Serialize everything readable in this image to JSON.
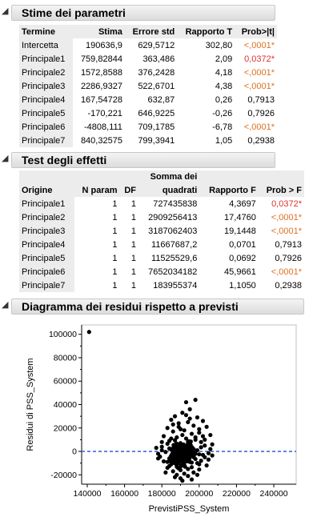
{
  "params": {
    "title": "Stime dei parametri",
    "headers": [
      "Termine",
      "Stima",
      "Errore std",
      "Rapporto T",
      "Prob>|t|"
    ],
    "rows": [
      {
        "term": "Intercetta",
        "stima": "190636,9",
        "err": "629,5712",
        "t": "302,80",
        "p": "<,0001*",
        "sig": "orange"
      },
      {
        "term": "Principale1",
        "stima": "759,82844",
        "err": "363,486",
        "t": "2,09",
        "p": "0,0372*",
        "sig": "red"
      },
      {
        "term": "Principale2",
        "stima": "1572,8588",
        "err": "376,2428",
        "t": "4,18",
        "p": "<,0001*",
        "sig": "orange"
      },
      {
        "term": "Principale3",
        "stima": "2286,9327",
        "err": "522,6701",
        "t": "4,38",
        "p": "<,0001*",
        "sig": "orange"
      },
      {
        "term": "Principale4",
        "stima": "167,54728",
        "err": "632,87",
        "t": "0,26",
        "p": "0,7913",
        "sig": "none"
      },
      {
        "term": "Principale5",
        "stima": "-170,221",
        "err": "646,9225",
        "t": "-0,26",
        "p": "0,7926",
        "sig": "none"
      },
      {
        "term": "Principale6",
        "stima": "-4808,111",
        "err": "709,1785",
        "t": "-6,78",
        "p": "<,0001*",
        "sig": "orange"
      },
      {
        "term": "Principale7",
        "stima": "840,32575",
        "err": "799,3941",
        "t": "1,05",
        "p": "0,2938",
        "sig": "none"
      }
    ]
  },
  "effects": {
    "title": "Test degli effetti",
    "headers": [
      "Origine",
      "N param",
      "DF",
      "Somma dei quadrati",
      "Rapporto F",
      "Prob > F"
    ],
    "header_top": "Somma dei",
    "header_bottom": "quadrati",
    "rows": [
      {
        "src": "Principale1",
        "n": "1",
        "df": "1",
        "ss": "727435838",
        "f": "4,3697",
        "p": "0,0372*",
        "sig": "red"
      },
      {
        "src": "Principale2",
        "n": "1",
        "df": "1",
        "ss": "2909256413",
        "f": "17,4760",
        "p": "<,0001*",
        "sig": "orange"
      },
      {
        "src": "Principale3",
        "n": "1",
        "df": "1",
        "ss": "3187062403",
        "f": "19,1448",
        "p": "<,0001*",
        "sig": "orange"
      },
      {
        "src": "Principale4",
        "n": "1",
        "df": "1",
        "ss": "11667687,2",
        "f": "0,0701",
        "p": "0,7913",
        "sig": "none"
      },
      {
        "src": "Principale5",
        "n": "1",
        "df": "1",
        "ss": "11525529,6",
        "f": "0,0692",
        "p": "0,7926",
        "sig": "none"
      },
      {
        "src": "Principale6",
        "n": "1",
        "df": "1",
        "ss": "7652034182",
        "f": "45,9661",
        "p": "<,0001*",
        "sig": "orange"
      },
      {
        "src": "Principale7",
        "n": "1",
        "df": "1",
        "ss": "183955374",
        "f": "1,1050",
        "p": "0,2938",
        "sig": "none"
      }
    ]
  },
  "residuals": {
    "title": "Diagramma dei residui rispetto a previsti"
  },
  "colors": {
    "orange_sig": "#e07020",
    "red_sig": "#e03030",
    "zero_line": "#3b6fd6"
  },
  "chart_data": {
    "type": "scatter",
    "title": "",
    "xlabel": "PrevistiPSS_System",
    "ylabel": "Residui di PSS_System",
    "xlim": [
      137000,
      252000
    ],
    "ylim": [
      -28000,
      108000
    ],
    "xticks": [
      140000,
      160000,
      180000,
      200000,
      220000,
      240000
    ],
    "xtick_labels": [
      "140000",
      "160000",
      "180000",
      "200000",
      "220000",
      "240000"
    ],
    "yticks": [
      -20000,
      0,
      20000,
      40000,
      60000,
      80000,
      100000
    ],
    "ytick_labels": [
      "-20000",
      "0",
      "20000",
      "40000",
      "60000",
      "80000",
      "100000"
    ],
    "reference_line": {
      "y": 0,
      "style": "dashed",
      "color": "#3b6fd6"
    },
    "grid": false,
    "points_note": "cloud of ~400 points centered near x=190000, y=0; outlier at x=141000, y=102000",
    "points": [
      [
        141000,
        102000
      ],
      [
        198000,
        44000
      ],
      [
        193000,
        42000
      ],
      [
        195000,
        36000
      ],
      [
        191000,
        33000
      ],
      [
        187000,
        30000
      ],
      [
        199000,
        29000
      ],
      [
        185000,
        27000
      ],
      [
        202000,
        26000
      ],
      [
        194000,
        25000
      ],
      [
        189000,
        24000
      ],
      [
        197000,
        22000
      ],
      [
        183000,
        20000
      ],
      [
        204000,
        21000
      ],
      [
        190000,
        19000
      ],
      [
        192000,
        18000
      ],
      [
        186000,
        17000
      ],
      [
        200000,
        16000
      ],
      [
        196000,
        15000
      ],
      [
        181000,
        13000
      ],
      [
        206000,
        14000
      ],
      [
        188000,
        12000
      ],
      [
        193000,
        11000
      ],
      [
        198000,
        10000
      ],
      [
        184000,
        9000
      ],
      [
        201000,
        8000
      ],
      [
        190000,
        7000
      ],
      [
        195000,
        6000
      ],
      [
        187000,
        5000
      ],
      [
        203000,
        5000
      ],
      [
        180000,
        4000
      ],
      [
        192000,
        3000
      ],
      [
        197000,
        2000
      ],
      [
        185000,
        1500
      ],
      [
        199000,
        1000
      ],
      [
        189000,
        500
      ],
      [
        182000,
        -500
      ],
      [
        194000,
        -1000
      ],
      [
        205000,
        -1500
      ],
      [
        188000,
        -2000
      ],
      [
        200000,
        -2500
      ],
      [
        186000,
        -3000
      ],
      [
        191000,
        -3500
      ],
      [
        196000,
        -4000
      ],
      [
        179000,
        -4500
      ],
      [
        203000,
        -5000
      ],
      [
        190000,
        -5500
      ],
      [
        184000,
        -6000
      ],
      [
        198000,
        -6500
      ],
      [
        193000,
        -7000
      ],
      [
        187000,
        -7500
      ],
      [
        201000,
        -8000
      ],
      [
        181000,
        -8500
      ],
      [
        195000,
        -9000
      ],
      [
        189000,
        -9500
      ],
      [
        199000,
        -10000
      ],
      [
        185000,
        -11000
      ],
      [
        192000,
        -11500
      ],
      [
        204000,
        -12000
      ],
      [
        188000,
        -13000
      ],
      [
        196000,
        -13500
      ],
      [
        183000,
        -14000
      ],
      [
        194000,
        -15000
      ],
      [
        200000,
        -15500
      ],
      [
        190000,
        -16000
      ],
      [
        186000,
        -17000
      ],
      [
        197000,
        -18000
      ],
      [
        192000,
        -19000
      ],
      [
        188000,
        -20000
      ],
      [
        194000,
        -21000
      ],
      [
        190000,
        -23000
      ],
      [
        184000,
        -12500
      ],
      [
        202000,
        -3000
      ],
      [
        180000,
        1000
      ],
      [
        206000,
        2000
      ],
      [
        178000,
        -2000
      ],
      [
        207000,
        6000
      ],
      [
        177000,
        3000
      ],
      [
        183000,
        6500
      ],
      [
        198000,
        12000
      ],
      [
        191000,
        14000
      ],
      [
        189000,
        21000
      ],
      [
        195000,
        28000
      ],
      [
        193000,
        31000
      ],
      [
        186000,
        23000
      ],
      [
        200000,
        19000
      ],
      [
        182000,
        -18000
      ],
      [
        199000,
        -20000
      ],
      [
        187000,
        -22000
      ],
      [
        196000,
        -24000
      ],
      [
        191000,
        -25000
      ],
      [
        185000,
        11000
      ],
      [
        203000,
        10000
      ],
      [
        188000,
        2000
      ],
      [
        192000,
        -200
      ],
      [
        195000,
        500
      ],
      [
        190000,
        1200
      ],
      [
        197000,
        -700
      ],
      [
        186000,
        -1200
      ],
      [
        193000,
        4000
      ],
      [
        189000,
        -4000
      ],
      [
        201000,
        3500
      ],
      [
        184000,
        2500
      ],
      [
        198000,
        -2000
      ],
      [
        194000,
        8000
      ],
      [
        187000,
        9500
      ],
      [
        191000,
        -6000
      ],
      [
        196000,
        -9500
      ],
      [
        183000,
        -9000
      ],
      [
        200000,
        -11000
      ],
      [
        189000,
        -14500
      ],
      [
        202000,
        13000
      ],
      [
        180000,
        8000
      ],
      [
        205000,
        -7000
      ],
      [
        178000,
        -6000
      ],
      [
        207000,
        -3500
      ]
    ]
  }
}
